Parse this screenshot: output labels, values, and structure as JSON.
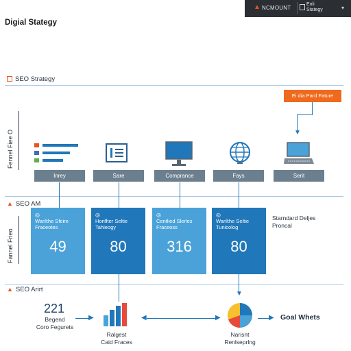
{
  "topbar": {
    "account_label": "NCMOUNT",
    "user_line1": "Enli",
    "user_line2": "Stategy",
    "chevron": "▾",
    "alert_icon": "warning-icon"
  },
  "page_title": "Digial Stategy",
  "sections": {
    "strategy": "SEO Strategy",
    "am": "SEO AM",
    "art": "SEO Arirt"
  },
  "side_labels": {
    "upper": "Fennel Fiee O",
    "lower": "Fannel Frieo"
  },
  "orange_button": "Ei dia Pard Fature",
  "steps": [
    "Inrey",
    "Sare",
    "Comprance",
    "Fays",
    "Serit"
  ],
  "step_icons": [
    "list-icon",
    "document-icon",
    "monitor-icon",
    "globe-icon",
    "laptop-icon"
  ],
  "cards": [
    {
      "title": "Warilthe Sfeire Fraceotes",
      "value": "49",
      "icon": "◎"
    },
    {
      "title": "Horilfter Seltie Tahieogy",
      "value": "80",
      "icon": "◎"
    },
    {
      "title": "Centlied Slerles Fraceoss",
      "value": "316",
      "icon": "◎"
    },
    {
      "title": "Warilthe Seltie Tunicolog",
      "value": "80",
      "icon": "◎"
    }
  ],
  "side_note": {
    "line1": "Starndard Deljes",
    "line2": "Proncal"
  },
  "bottom": {
    "left_value": "221",
    "left_line1": "Begend",
    "left_line2": "Coro Fegurets",
    "bar_label_line1": "Ralgest",
    "bar_label_line2": "Caid Fraces",
    "pie_label_line1": "Narisnt",
    "pie_label_line2": "Renlseprlng",
    "goal_label": "Goal Whets"
  },
  "colors": {
    "accent": "#f06a1d",
    "card_light": "#4aa2d8",
    "card_dark": "#2077b9",
    "pill": "#6c7f8f"
  }
}
